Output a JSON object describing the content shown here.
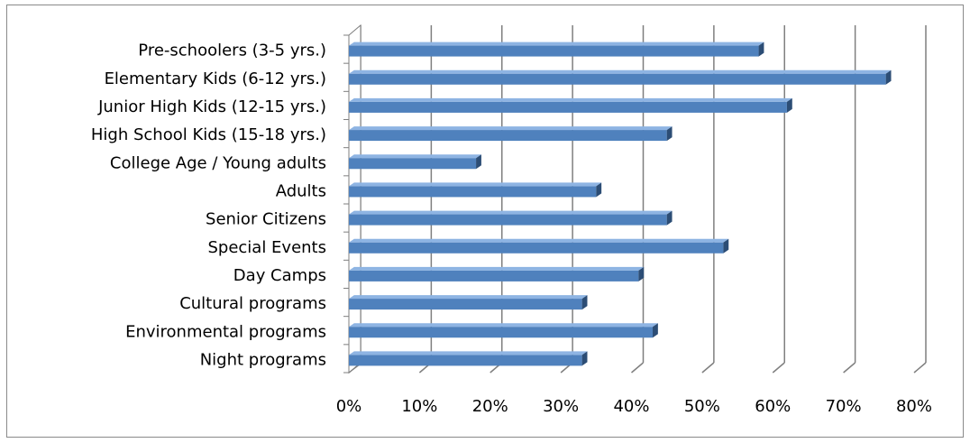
{
  "chart_data": {
    "type": "bar",
    "orientation": "horizontal",
    "style": "3d-clustered-bar",
    "categories": [
      "Pre-schoolers (3-5 yrs.)",
      "Elementary Kids (6-12 yrs.)",
      "Junior High Kids (12-15 yrs.)",
      "High School Kids (15-18 yrs.)",
      "College Age / Young adults",
      "Adults",
      "Senior Citizens",
      "Special Events",
      "Day Camps",
      "Cultural programs",
      "Environmental programs",
      "Night programs"
    ],
    "values": [
      58,
      76,
      62,
      45,
      18,
      35,
      45,
      53,
      41,
      33,
      43,
      33
    ],
    "value_unit": "%",
    "xlim": [
      0,
      80
    ],
    "xticks": [
      "0%",
      "10%",
      "20%",
      "30%",
      "40%",
      "50%",
      "60%",
      "70%",
      "80%"
    ],
    "grid": true,
    "legend": "none",
    "colors": {
      "bar_front": "#4f81bd",
      "bar_top": "#8eb4e3",
      "bar_side": "#2c4d75",
      "gridline": "#7f7f7f"
    }
  }
}
